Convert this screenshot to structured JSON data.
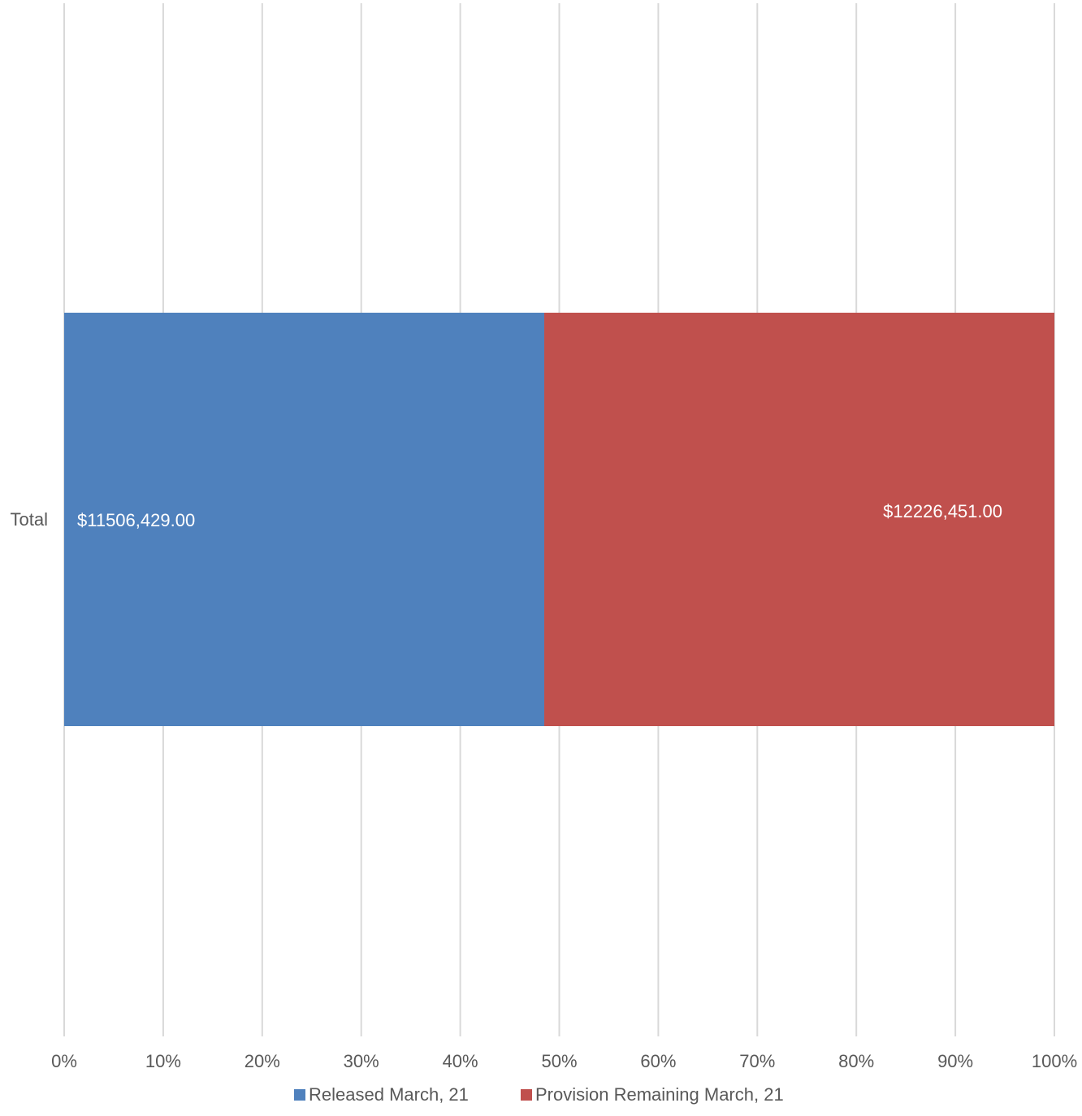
{
  "chart_data": {
    "type": "bar",
    "orientation": "horizontal",
    "stacking": "percent",
    "categories": [
      "Total"
    ],
    "series": [
      {
        "name": "Released March, 21",
        "values": [
          11506429
        ],
        "data_label": "$11506,429.00",
        "color": "#4f81bd"
      },
      {
        "name": "Provision Remaining March, 21",
        "values": [
          12226451
        ],
        "data_label": "$12226,451.00",
        "color": "#c0504d"
      }
    ],
    "x_ticks": [
      "0%",
      "10%",
      "20%",
      "30%",
      "40%",
      "50%",
      "60%",
      "70%",
      "80%",
      "90%",
      "100%"
    ],
    "xlim": [
      0,
      100
    ],
    "grid": true,
    "legend_position": "bottom",
    "title": "",
    "xlabel": "",
    "ylabel": ""
  }
}
